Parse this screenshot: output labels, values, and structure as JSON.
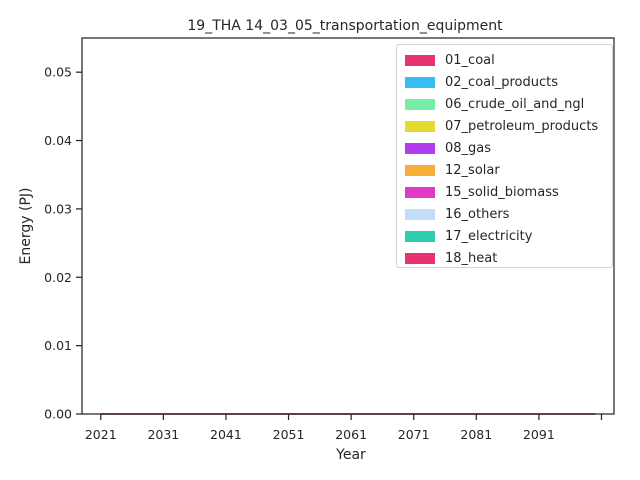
{
  "chart_data": {
    "type": "area",
    "title": "19_THA 14_03_05_transportation_equipment",
    "xlabel": "Year",
    "ylabel": "Energy (PJ)",
    "x": [
      2021,
      2022,
      2023,
      2024,
      2025,
      2026,
      2027,
      2028,
      2029,
      2030,
      2031,
      2032,
      2033,
      2034,
      2035,
      2036,
      2037,
      2038,
      2039,
      2040,
      2041,
      2042,
      2043,
      2044,
      2045,
      2046,
      2047,
      2048,
      2049,
      2050,
      2051,
      2052,
      2053,
      2054,
      2055,
      2056,
      2057,
      2058,
      2059,
      2060,
      2061,
      2062,
      2063,
      2064,
      2065,
      2066,
      2067,
      2068,
      2069,
      2070,
      2071,
      2072,
      2073,
      2074,
      2075,
      2076,
      2077,
      2078,
      2079,
      2080,
      2081,
      2082,
      2083,
      2084,
      2085,
      2086,
      2087,
      2088,
      2089,
      2090,
      2091,
      2092,
      2093,
      2094,
      2095,
      2096,
      2097,
      2098,
      2099,
      2100
    ],
    "xlim": [
      2018,
      2103
    ],
    "ylim": [
      0,
      0.055
    ],
    "x_ticks": [
      "2021",
      "2031",
      "2041",
      "2051",
      "2061",
      "2071",
      "2081",
      "2091",
      ""
    ],
    "y_ticks": [
      "0.00",
      "0.01",
      "0.02",
      "0.03",
      "0.04",
      "0.05"
    ],
    "legend_position": "upper right",
    "grid": false,
    "series": [
      {
        "name": "01_coal",
        "color": "#e8336e",
        "value": 0
      },
      {
        "name": "02_coal_products",
        "color": "#38bdf5",
        "value": 0
      },
      {
        "name": "06_crude_oil_and_ngl",
        "color": "#77eea5",
        "value": 0
      },
      {
        "name": "07_petroleum_products",
        "color": "#e5da30",
        "value": 0
      },
      {
        "name": "08_gas",
        "color": "#b13cf0",
        "value": 0
      },
      {
        "name": "12_solar",
        "color": "#f9ae3a",
        "value": 0
      },
      {
        "name": "15_solid_biomass",
        "color": "#e03bc4",
        "value": 0
      },
      {
        "name": "16_others",
        "color": "#c2dcfa",
        "value": 0
      },
      {
        "name": "17_electricity",
        "color": "#2ecbae",
        "value": 0
      },
      {
        "name": "18_heat",
        "color": "#e8336e",
        "value": 0
      }
    ]
  }
}
